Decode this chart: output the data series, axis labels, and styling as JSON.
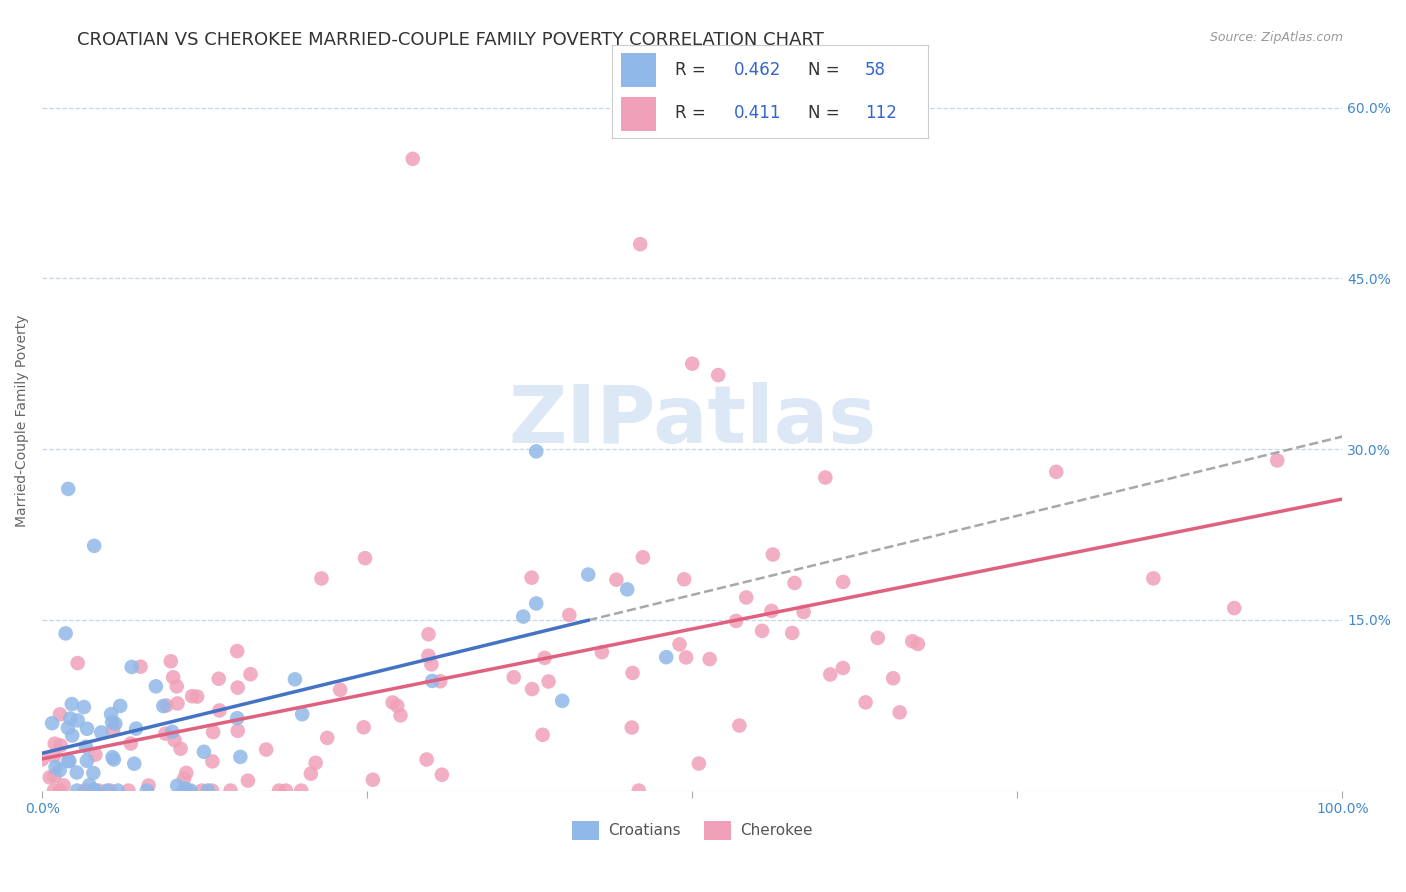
{
  "title": "CROATIAN VS CHEROKEE MARRIED-COUPLE FAMILY POVERTY CORRELATION CHART",
  "source_text": "Source: ZipAtlas.com",
  "ylabel": "Married-Couple Family Poverty",
  "xlim": [
    0,
    1.0
  ],
  "ylim": [
    0,
    0.65
  ],
  "xtick_positions": [
    0.0,
    0.25,
    0.5,
    0.75,
    1.0
  ],
  "xticklabels": [
    "0.0%",
    "",
    "",
    "",
    "100.0%"
  ],
  "ytick_positions": [
    0.0,
    0.15,
    0.3,
    0.45,
    0.6
  ],
  "ytick_labels_right": [
    "",
    "15.0%",
    "30.0%",
    "45.0%",
    "60.0%"
  ],
  "croatian_color": "#90b8e8",
  "cherokee_color": "#f0a0b8",
  "regression_blue_color": "#4472c4",
  "regression_pink_color": "#e06080",
  "regression_dash_color": "#a8a8a8",
  "watermark_text": "ZIPatlas",
  "watermark_color": "#dce8f5",
  "background_color": "#ffffff",
  "grid_color": "#c8d4e8",
  "title_fontsize": 13,
  "axis_label_fontsize": 10,
  "tick_fontsize": 10,
  "croatian_n": 58,
  "cherokee_n": 112,
  "croatian_R": 0.462,
  "cherokee_R": 0.411,
  "croatian_seed": 42,
  "cherokee_seed": 7
}
